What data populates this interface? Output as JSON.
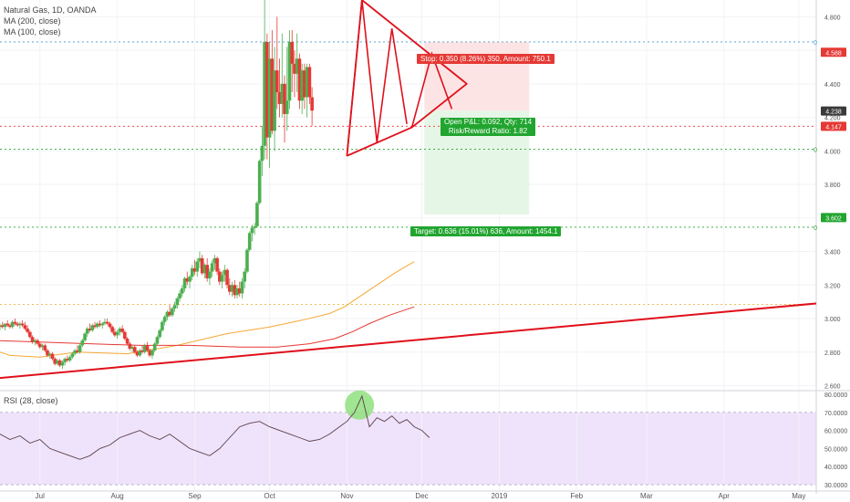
{
  "legend": {
    "title": "Natural Gas, 1D, OANDA",
    "ma200": "MA (200, close)",
    "ma100": "MA (100, close)",
    "rsi": "RSI (28, close)"
  },
  "colors": {
    "up": "#4caf50",
    "down": "#e53935",
    "trend": "#e0101b",
    "ma200": "#f7a833",
    "ma100": "#e53935",
    "rsi": "#5b3f4a",
    "rsi_band": "#efe3fb",
    "stop_zone": "#fde4e4",
    "target_zone": "#e6f6e6",
    "stop_label": "#e53935",
    "target_label": "#21a52f",
    "price_label": "#3a3a3a"
  },
  "labels": {
    "stop": "Stop: 0.350 (8.26%) 350, Amount: 750.1",
    "pnl": "Open P&L: 0.092, Qty: 714",
    "rr": "Risk/Reward Ratio: 1.82",
    "target": "Target: 0.636 (15.01%) 636, Amount: 1454.1",
    "level_marker": "0"
  },
  "price_tags": [
    {
      "text": "4.588",
      "value": 4.588,
      "color": "#e53935"
    },
    {
      "text": "4.238",
      "value": 4.238,
      "color": "#3a3a3a"
    },
    {
      "text": "4.147",
      "value": 4.147,
      "color": "#e53935"
    },
    {
      "text": "3.602",
      "value": 3.602,
      "color": "#21a52f"
    }
  ],
  "chart_data": {
    "type": "candlestick",
    "title": "Natural Gas, 1D, OANDA",
    "price_axis": {
      "ticks": [
        "4.800",
        "4.600",
        "4.400",
        "4.200",
        "4.000",
        "3.800",
        "3.600",
        "3.400",
        "3.200",
        "3.000",
        "2.800",
        "2.600"
      ],
      "range": [
        2.57,
        4.9
      ]
    },
    "rsi_axis": {
      "ticks": [
        "80.0000",
        "70.0000",
        "60.0000",
        "50.0000",
        "40.0000",
        "30.0000"
      ],
      "range": [
        27,
        82
      ],
      "band": [
        30,
        70
      ]
    },
    "x_ticks": [
      "Jul",
      "Aug",
      "Sep",
      "Oct",
      "Nov",
      "Dec",
      "2019",
      "Feb",
      "Mar",
      "Apr",
      "May"
    ],
    "x_tick_days": [
      20,
      51,
      82,
      112,
      143,
      173,
      204,
      235,
      263,
      294,
      324
    ],
    "x_range": [
      4,
      331
    ],
    "candles_start_day": 4,
    "candles": [
      [
        2.95,
        2.97,
        2.93,
        2.96
      ],
      [
        2.96,
        2.98,
        2.94,
        2.95
      ],
      [
        2.95,
        2.97,
        2.93,
        2.97
      ],
      [
        2.97,
        2.99,
        2.95,
        2.96
      ],
      [
        2.96,
        2.97,
        2.94,
        2.95
      ],
      [
        2.95,
        2.99,
        2.94,
        2.98
      ],
      [
        2.98,
        3.0,
        2.96,
        2.97
      ],
      [
        2.97,
        2.98,
        2.95,
        2.96
      ],
      [
        2.96,
        2.98,
        2.94,
        2.97
      ],
      [
        2.97,
        2.99,
        2.95,
        2.96
      ],
      [
        2.96,
        2.98,
        2.93,
        2.94
      ],
      [
        2.94,
        2.96,
        2.91,
        2.92
      ],
      [
        2.92,
        2.93,
        2.88,
        2.89
      ],
      [
        2.89,
        2.9,
        2.85,
        2.86
      ],
      [
        2.86,
        2.88,
        2.84,
        2.87
      ],
      [
        2.87,
        2.88,
        2.84,
        2.85
      ],
      [
        2.85,
        2.86,
        2.82,
        2.83
      ],
      [
        2.83,
        2.85,
        2.81,
        2.84
      ],
      [
        2.84,
        2.85,
        2.8,
        2.81
      ],
      [
        2.81,
        2.82,
        2.77,
        2.78
      ],
      [
        2.78,
        2.8,
        2.76,
        2.79
      ],
      [
        2.79,
        2.8,
        2.75,
        2.76
      ],
      [
        2.76,
        2.77,
        2.72,
        2.73
      ],
      [
        2.73,
        2.76,
        2.72,
        2.75
      ],
      [
        2.75,
        2.76,
        2.71,
        2.72
      ],
      [
        2.72,
        2.75,
        2.7,
        2.74
      ],
      [
        2.74,
        2.77,
        2.72,
        2.76
      ],
      [
        2.76,
        2.78,
        2.74,
        2.75
      ],
      [
        2.75,
        2.78,
        2.74,
        2.77
      ],
      [
        2.77,
        2.8,
        2.76,
        2.79
      ],
      [
        2.79,
        2.82,
        2.78,
        2.81
      ],
      [
        2.81,
        2.84,
        2.79,
        2.8
      ],
      [
        2.8,
        2.85,
        2.79,
        2.84
      ],
      [
        2.84,
        2.88,
        2.83,
        2.87
      ],
      [
        2.87,
        2.92,
        2.86,
        2.91
      ],
      [
        2.91,
        2.95,
        2.89,
        2.94
      ],
      [
        2.94,
        2.97,
        2.92,
        2.93
      ],
      [
        2.93,
        2.97,
        2.92,
        2.96
      ],
      [
        2.96,
        2.98,
        2.94,
        2.95
      ],
      [
        2.95,
        2.98,
        2.94,
        2.97
      ],
      [
        2.97,
        2.99,
        2.95,
        2.96
      ],
      [
        2.96,
        2.98,
        2.94,
        2.97
      ],
      [
        2.97,
        3.0,
        2.96,
        2.98
      ],
      [
        2.98,
        3.0,
        2.96,
        2.97
      ],
      [
        2.97,
        2.98,
        2.94,
        2.95
      ],
      [
        2.95,
        2.96,
        2.91,
        2.92
      ],
      [
        2.92,
        2.94,
        2.89,
        2.9
      ],
      [
        2.9,
        2.93,
        2.88,
        2.92
      ],
      [
        2.92,
        2.95,
        2.9,
        2.94
      ],
      [
        2.94,
        2.96,
        2.91,
        2.92
      ],
      [
        2.92,
        2.93,
        2.87,
        2.88
      ],
      [
        2.88,
        2.89,
        2.84,
        2.85
      ],
      [
        2.85,
        2.86,
        2.81,
        2.82
      ],
      [
        2.82,
        2.84,
        2.8,
        2.83
      ],
      [
        2.83,
        2.84,
        2.79,
        2.8
      ],
      [
        2.8,
        2.81,
        2.77,
        2.78
      ],
      [
        2.78,
        2.82,
        2.77,
        2.81
      ],
      [
        2.81,
        2.84,
        2.79,
        2.8
      ],
      [
        2.8,
        2.85,
        2.79,
        2.84
      ],
      [
        2.84,
        2.86,
        2.8,
        2.81
      ],
      [
        2.81,
        2.82,
        2.77,
        2.78
      ],
      [
        2.78,
        2.82,
        2.76,
        2.81
      ],
      [
        2.81,
        2.86,
        2.8,
        2.85
      ],
      [
        2.85,
        2.9,
        2.84,
        2.89
      ],
      [
        2.89,
        2.94,
        2.88,
        2.93
      ],
      [
        2.93,
        2.99,
        2.92,
        2.98
      ],
      [
        2.98,
        3.02,
        2.96,
        3.01
      ],
      [
        3.01,
        3.05,
        2.99,
        3.04
      ],
      [
        3.04,
        3.08,
        3.01,
        3.02
      ],
      [
        3.02,
        3.07,
        3.01,
        3.06
      ],
      [
        3.06,
        3.1,
        3.04,
        3.08
      ],
      [
        3.08,
        3.13,
        3.06,
        3.12
      ],
      [
        3.12,
        3.17,
        3.1,
        3.15
      ],
      [
        3.15,
        3.2,
        3.13,
        3.18
      ],
      [
        3.18,
        3.25,
        3.16,
        3.24
      ],
      [
        3.24,
        3.28,
        3.2,
        3.22
      ],
      [
        3.22,
        3.26,
        3.18,
        3.25
      ],
      [
        3.25,
        3.32,
        3.23,
        3.3
      ],
      [
        3.3,
        3.35,
        3.26,
        3.28
      ],
      [
        3.28,
        3.36,
        3.25,
        3.34
      ],
      [
        3.34,
        3.4,
        3.3,
        3.36
      ],
      [
        3.36,
        3.38,
        3.26,
        3.27
      ],
      [
        3.27,
        3.33,
        3.24,
        3.32
      ],
      [
        3.32,
        3.36,
        3.22,
        3.24
      ],
      [
        3.24,
        3.3,
        3.2,
        3.28
      ],
      [
        3.28,
        3.35,
        3.25,
        3.33
      ],
      [
        3.33,
        3.38,
        3.29,
        3.36
      ],
      [
        3.36,
        3.37,
        3.26,
        3.28
      ],
      [
        3.28,
        3.3,
        3.2,
        3.22
      ],
      [
        3.22,
        3.28,
        3.18,
        3.26
      ],
      [
        3.26,
        3.32,
        3.22,
        3.29
      ],
      [
        3.29,
        3.3,
        3.18,
        3.2
      ],
      [
        3.2,
        3.24,
        3.14,
        3.16
      ],
      [
        3.16,
        3.22,
        3.13,
        3.2
      ],
      [
        3.2,
        3.23,
        3.12,
        3.14
      ],
      [
        3.14,
        3.2,
        3.12,
        3.18
      ],
      [
        3.18,
        3.22,
        3.13,
        3.15
      ],
      [
        3.15,
        3.24,
        3.12,
        3.22
      ],
      [
        3.22,
        3.3,
        3.18,
        3.28
      ],
      [
        3.28,
        3.42,
        3.27,
        3.41
      ],
      [
        3.41,
        3.52,
        3.4,
        3.51
      ],
      [
        3.51,
        3.56,
        3.46,
        3.54
      ],
      [
        3.54,
        3.57,
        3.5,
        3.55
      ],
      [
        3.55,
        3.7,
        3.54,
        3.69
      ],
      [
        3.69,
        3.95,
        3.68,
        3.94
      ],
      [
        3.94,
        4.15,
        3.85,
        4.03
      ],
      [
        4.03,
        4.9,
        3.95,
        4.65
      ],
      [
        4.65,
        4.7,
        3.95,
        4.08
      ],
      [
        4.08,
        4.65,
        3.9,
        4.55
      ],
      [
        4.55,
        4.72,
        4.1,
        4.12
      ],
      [
        4.12,
        4.62,
        4.0,
        4.48
      ],
      [
        4.48,
        4.8,
        4.25,
        4.35
      ],
      [
        4.35,
        4.55,
        4.2,
        4.28
      ],
      [
        4.28,
        4.7,
        4.2,
        4.4
      ],
      [
        4.4,
        4.45,
        4.05,
        4.22
      ],
      [
        4.22,
        4.62,
        4.12,
        4.3
      ],
      [
        4.3,
        4.72,
        4.25,
        4.65
      ],
      [
        4.65,
        4.72,
        4.35,
        4.52
      ],
      [
        4.52,
        4.6,
        4.32,
        4.46
      ],
      [
        4.46,
        4.7,
        4.35,
        4.55
      ],
      [
        4.55,
        4.58,
        4.25,
        4.3
      ],
      [
        4.3,
        4.52,
        4.22,
        4.48
      ],
      [
        4.48,
        4.52,
        4.25,
        4.32
      ],
      [
        4.32,
        4.52,
        4.2,
        4.5
      ],
      [
        4.5,
        4.52,
        4.28,
        4.32
      ],
      [
        4.32,
        4.38,
        4.15,
        4.24
      ]
    ],
    "ma200": [
      [
        0,
        2.82
      ],
      [
        8,
        2.78
      ],
      [
        20,
        2.77
      ],
      [
        35,
        2.8
      ],
      [
        55,
        2.79
      ],
      [
        75,
        2.84
      ],
      [
        95,
        2.91
      ],
      [
        112,
        2.95
      ],
      [
        125,
        2.99
      ],
      [
        136,
        3.03
      ],
      [
        142,
        3.07
      ],
      [
        148,
        3.13
      ],
      [
        155,
        3.2
      ],
      [
        162,
        3.27
      ],
      [
        170,
        3.34
      ]
    ],
    "ma100": [
      [
        0,
        2.87
      ],
      [
        20,
        2.86
      ],
      [
        40,
        2.85
      ],
      [
        60,
        2.84
      ],
      [
        80,
        2.84
      ],
      [
        100,
        2.83
      ],
      [
        115,
        2.83
      ],
      [
        128,
        2.85
      ],
      [
        138,
        2.88
      ],
      [
        145,
        2.92
      ],
      [
        152,
        2.97
      ],
      [
        160,
        3.02
      ],
      [
        170,
        3.07
      ]
    ],
    "trend_support": [
      [
        0,
        2.64
      ],
      [
        331,
        3.09
      ]
    ],
    "triangle": [
      [
        143,
        3.97
      ],
      [
        149,
        4.9
      ],
      [
        191,
        4.4
      ],
      [
        169,
        4.14
      ],
      [
        143,
        3.97
      ]
    ],
    "projection": [
      [
        169,
        4.14
      ],
      [
        177,
        4.58
      ],
      [
        185,
        4.25
      ]
    ],
    "stop_zone": {
      "from_day": 174,
      "to_day": 216,
      "low": 4.24,
      "high": 4.65
    },
    "target_zone": {
      "from_day": 174,
      "to_day": 216,
      "low": 3.62,
      "high": 4.24
    },
    "levels": [
      {
        "value": 4.65,
        "color": "#3f9ad6"
      },
      {
        "value": 4.01,
        "color": "#21a52f"
      },
      {
        "value": 3.545,
        "color": "#21a52f"
      },
      {
        "value": 3.085,
        "color": "#f0b23a"
      },
      {
        "value": 4.147,
        "color": "#e53935"
      }
    ],
    "rsi": [
      [
        0,
        56
      ],
      [
        4,
        58
      ],
      [
        8,
        55
      ],
      [
        12,
        57
      ],
      [
        16,
        53
      ],
      [
        20,
        55
      ],
      [
        24,
        50
      ],
      [
        28,
        48
      ],
      [
        32,
        46
      ],
      [
        36,
        44
      ],
      [
        40,
        46
      ],
      [
        44,
        50
      ],
      [
        48,
        52
      ],
      [
        52,
        56
      ],
      [
        56,
        58
      ],
      [
        60,
        60
      ],
      [
        64,
        57
      ],
      [
        68,
        55
      ],
      [
        72,
        58
      ],
      [
        76,
        54
      ],
      [
        80,
        50
      ],
      [
        84,
        48
      ],
      [
        88,
        46
      ],
      [
        92,
        50
      ],
      [
        96,
        56
      ],
      [
        100,
        62
      ],
      [
        104,
        64
      ],
      [
        108,
        65
      ],
      [
        112,
        62
      ],
      [
        116,
        60
      ],
      [
        120,
        58
      ],
      [
        124,
        56
      ],
      [
        128,
        54
      ],
      [
        132,
        55
      ],
      [
        136,
        58
      ],
      [
        140,
        62
      ],
      [
        143,
        65
      ],
      [
        146,
        70
      ],
      [
        149,
        79
      ],
      [
        152,
        62
      ],
      [
        155,
        67
      ],
      [
        158,
        65
      ],
      [
        161,
        68
      ],
      [
        164,
        64
      ],
      [
        167,
        66
      ],
      [
        170,
        62
      ],
      [
        173,
        60
      ],
      [
        176,
        56
      ]
    ],
    "rsi_highlight": {
      "day": 148,
      "value": 74
    }
  }
}
